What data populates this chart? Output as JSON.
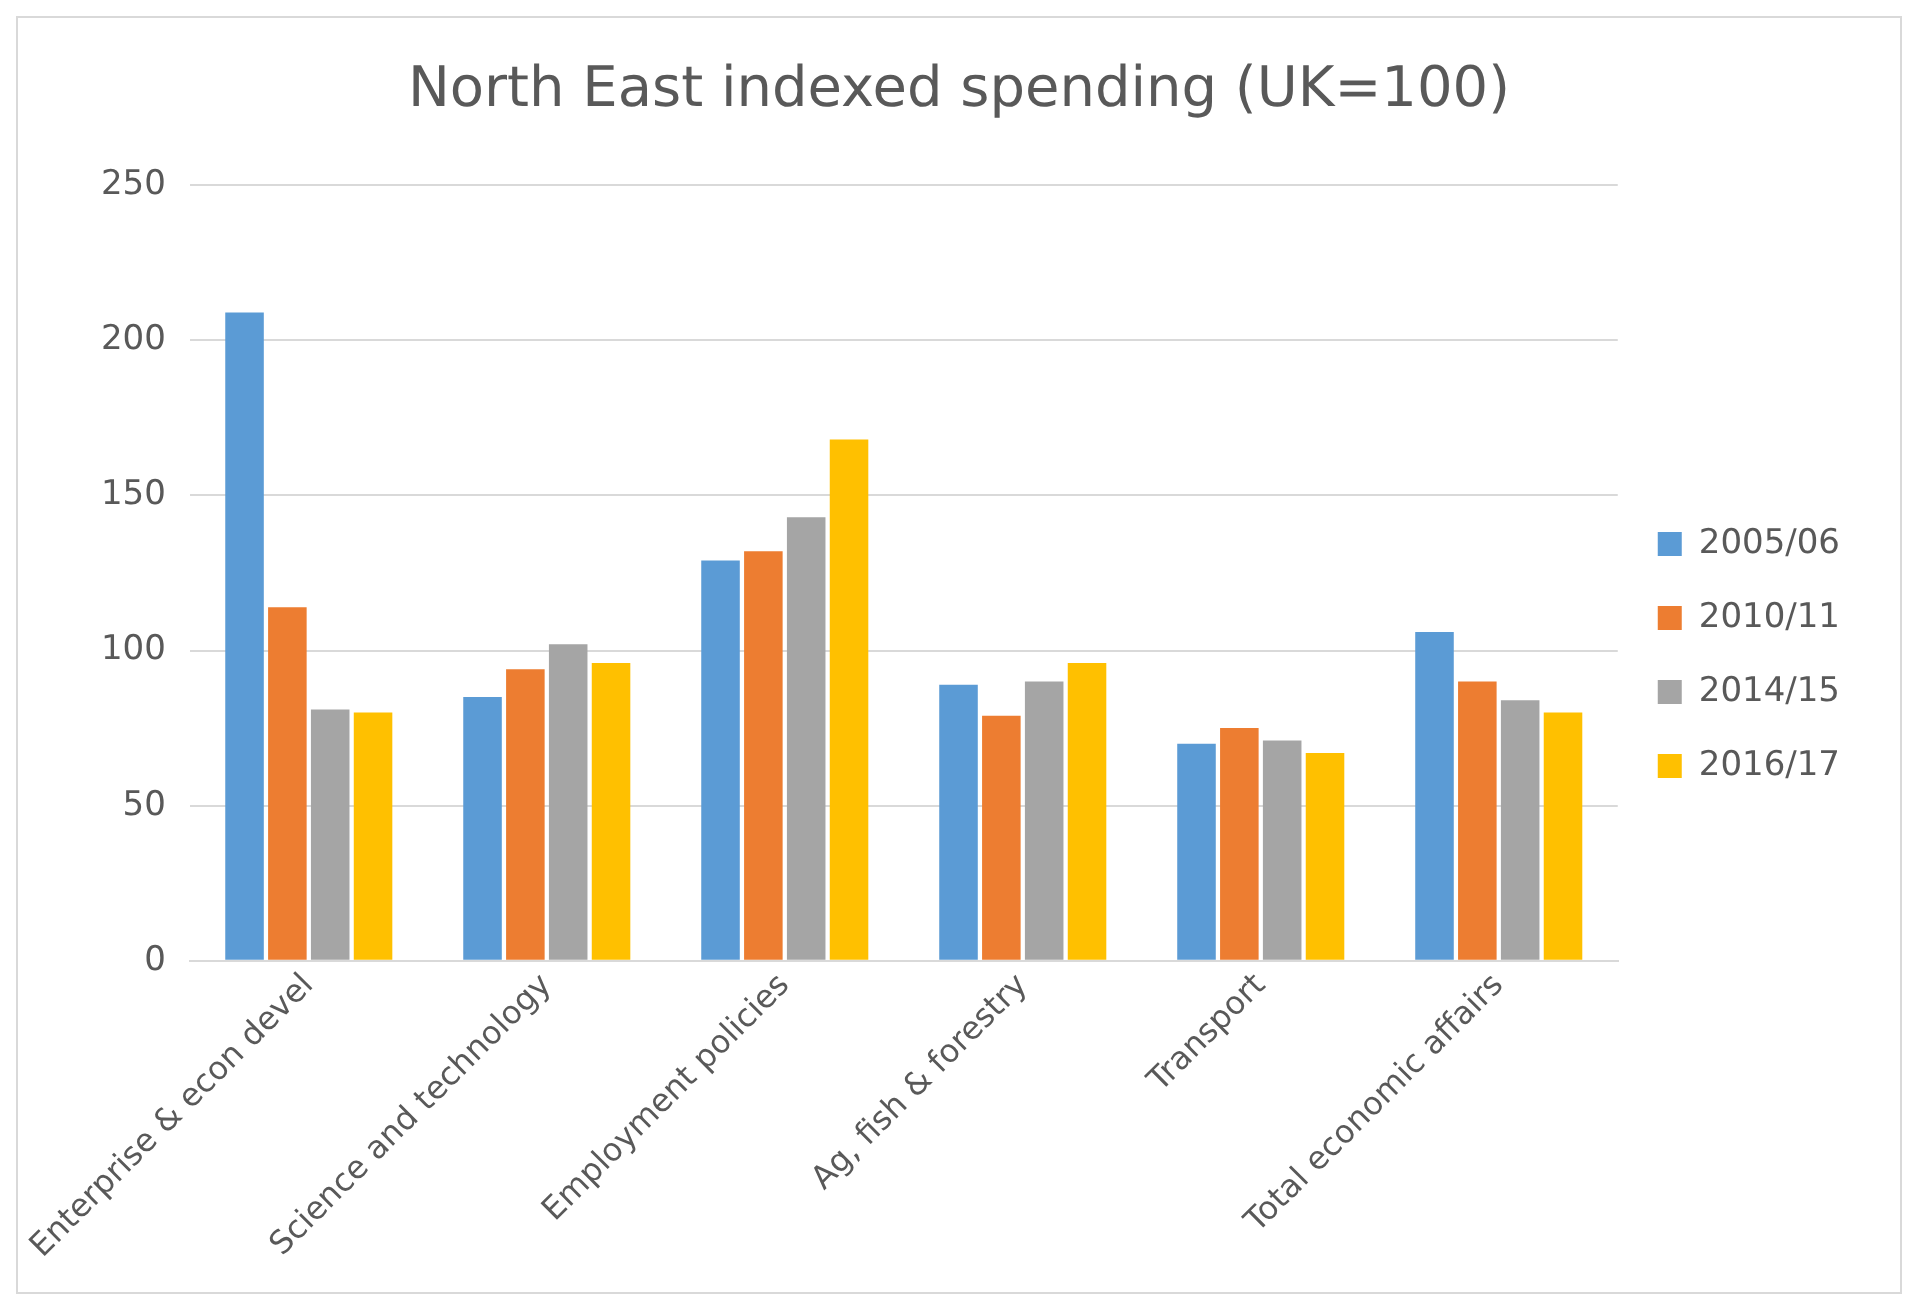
{
  "chart_data": {
    "type": "bar",
    "title": "North East indexed spending (UK=100)",
    "categories": [
      "Enterprise & econ devel",
      "Science and technology",
      "Employment policies",
      "Ag, fish & forestry",
      "Transport",
      "Total economic affairs"
    ],
    "series": [
      {
        "name": "2005/06",
        "color": "#5b9bd5",
        "values": [
          209,
          85,
          129,
          89,
          70,
          106
        ]
      },
      {
        "name": "2010/11",
        "color": "#ed7d31",
        "values": [
          114,
          94,
          132,
          79,
          75,
          90
        ]
      },
      {
        "name": "2014/15",
        "color": "#a5a5a5",
        "values": [
          81,
          102,
          143,
          90,
          71,
          84
        ]
      },
      {
        "name": "2016/17",
        "color": "#ffc000",
        "values": [
          80,
          96,
          168,
          96,
          67,
          80
        ]
      }
    ],
    "ylim": [
      0,
      250
    ],
    "yticks": [
      0,
      50,
      100,
      150,
      200,
      250
    ],
    "grid": "y",
    "legend": "right"
  }
}
